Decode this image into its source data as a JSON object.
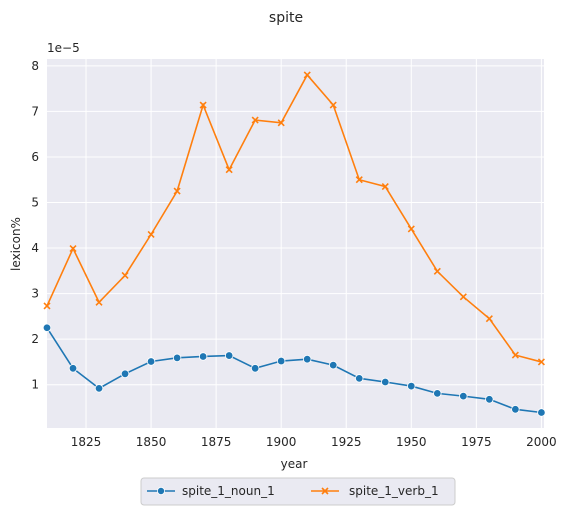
{
  "chart_data": {
    "type": "line",
    "title": "spite",
    "xlabel": "year",
    "ylabel": "lexicon%",
    "y_offset_text": "1e−5",
    "y_scale": 1e-05,
    "xlim": [
      1810,
      2001
    ],
    "ylim": [
      0.05,
      8.15
    ],
    "x_ticks": [
      1825,
      1850,
      1875,
      1900,
      1925,
      1950,
      1975,
      2000
    ],
    "y_ticks": [
      1,
      2,
      3,
      4,
      5,
      6,
      7,
      8
    ],
    "grid": true,
    "legend_position": "bottom-center",
    "x": [
      1810,
      1820,
      1830,
      1840,
      1850,
      1860,
      1870,
      1880,
      1890,
      1900,
      1910,
      1920,
      1930,
      1940,
      1950,
      1960,
      1970,
      1980,
      1990,
      2000
    ],
    "series": [
      {
        "name": "spite_1_noun_1",
        "marker": "circle",
        "color": "#1f77b4",
        "values": [
          2.25,
          1.36,
          0.92,
          1.24,
          1.51,
          1.59,
          1.62,
          1.64,
          1.36,
          1.52,
          1.56,
          1.43,
          1.14,
          1.06,
          0.97,
          0.81,
          0.75,
          0.68,
          0.46,
          0.39
        ]
      },
      {
        "name": "spite_1_verb_1",
        "marker": "x",
        "color": "#ff7f0e",
        "values": [
          2.73,
          3.99,
          2.81,
          3.4,
          4.3,
          5.25,
          7.14,
          5.72,
          6.81,
          6.75,
          7.8,
          7.14,
          5.5,
          5.35,
          4.42,
          3.49,
          2.93,
          2.45,
          1.65,
          1.5
        ]
      }
    ]
  }
}
